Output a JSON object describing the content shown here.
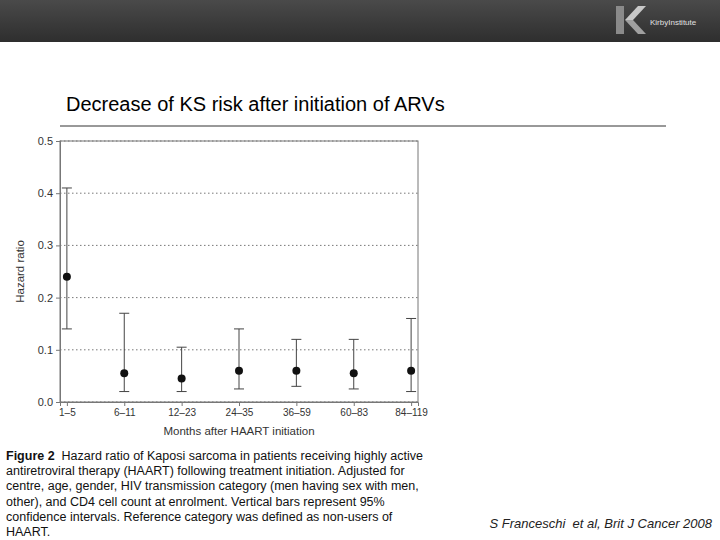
{
  "header": {
    "title": "Decrease of KS risk after initiation of ARVs",
    "logo": "KirbyInstitute"
  },
  "chart_data": {
    "type": "scatter",
    "x_label": "Months after HAART initiation",
    "y_label": "Hazard ratio",
    "categories": [
      "1–5",
      "6–11",
      "12–23",
      "24–35",
      "36–59",
      "60–83",
      "84–119"
    ],
    "values": [
      0.24,
      0.055,
      0.045,
      0.06,
      0.06,
      0.055,
      0.06
    ],
    "ci_lower": [
      0.14,
      0.02,
      0.02,
      0.025,
      0.03,
      0.025,
      0.02
    ],
    "ci_upper": [
      0.41,
      0.17,
      0.105,
      0.14,
      0.12,
      0.12,
      0.16
    ],
    "color": "#111111",
    "marker": "circle",
    "ylim": [
      0,
      0.5
    ],
    "yticks": [
      {
        "value": 0,
        "label": "0.0"
      },
      0.1,
      0.2,
      0.3,
      0.4,
      0.5
    ],
    "grid": true
  },
  "footer": {
    "figure_label": "Figure 2",
    "caption": "Hazard ratio of Kaposi sarcoma in patients receiving highly active antiretroviral therapy (HAART) following treatment initiation. Adjusted for centre, age, gender, HIV transmission category (men having sex with men, other), and CD4 cell count at enrolment. Vertical bars represent 95% confidence intervals. Reference category was defined as non-users of HAART.",
    "citation": "S Franceschi  et al, Brit J Cancer 2008"
  }
}
